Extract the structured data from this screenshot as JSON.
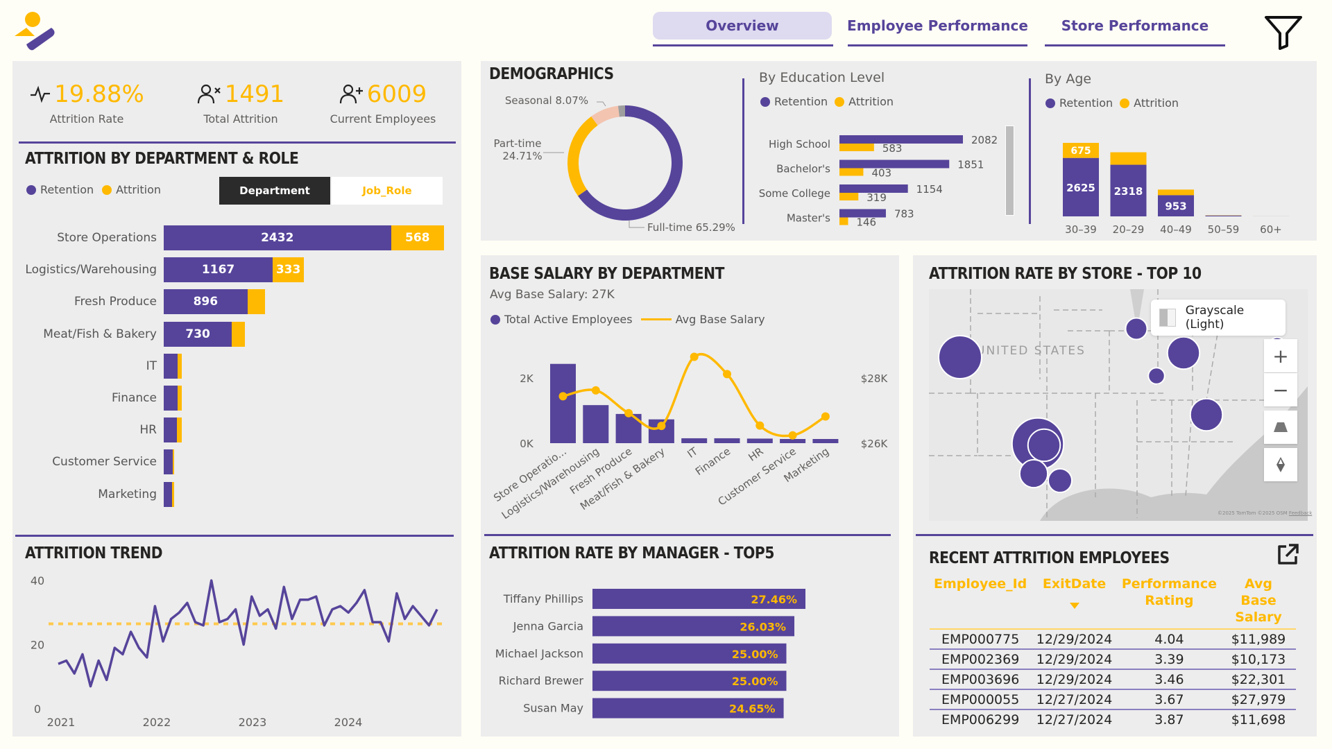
{
  "header": {
    "logo": "people-check-logo",
    "tabs": [
      {
        "label": "Overview",
        "active": true
      },
      {
        "label": "Employee Performance",
        "active": false
      },
      {
        "label": "Store Performance",
        "active": false
      }
    ],
    "filter_icon": "filter-icon"
  },
  "colors": {
    "purple": "#56449A",
    "gold": "#FFB900",
    "peach": "#F3C4B0",
    "grey": "#9E9E9E",
    "panel": "#EDEDED",
    "background": "#FFFEF6"
  },
  "kpis": [
    {
      "icon": "pulse-icon",
      "value": "19.88%",
      "label": "Attrition Rate"
    },
    {
      "icon": "user-x-icon",
      "value": "1491",
      "label": "Total Attrition"
    },
    {
      "icon": "user-plus-icon",
      "value": "6009",
      "label": "Current Employees"
    }
  ],
  "dept_chart": {
    "title": "ATTRITION BY DEPARTMENT & ROLE",
    "legend": [
      "Retention",
      "Attrition"
    ],
    "toggle": {
      "options": [
        "Department",
        "Job_Role"
      ],
      "selected": "Department"
    },
    "chart_data": {
      "type": "bar",
      "orientation": "horizontal-stacked",
      "categories": [
        "Store Operations",
        "Logistics/Warehousing",
        "Fresh Produce",
        "Meat/Fish & Bakery",
        "IT",
        "Finance",
        "HR",
        "Customer Service",
        "Marketing"
      ],
      "series": [
        {
          "name": "Retention",
          "values": [
            2432,
            1167,
            896,
            730,
            150,
            150,
            140,
            95,
            90
          ],
          "labels": [
            "2432",
            "1167",
            "896",
            "730",
            "",
            "",
            "",
            "",
            ""
          ]
        },
        {
          "name": "Attrition",
          "values": [
            568,
            333,
            190,
            140,
            40,
            40,
            50,
            20,
            22
          ],
          "labels": [
            "568",
            "333",
            "",
            "",
            "",
            "",
            "",
            "",
            ""
          ]
        }
      ],
      "xlim": [
        0,
        3000
      ]
    }
  },
  "trend": {
    "title": "ATTRITION TREND",
    "chart_data": {
      "type": "line",
      "title": "ATTRITION TREND",
      "x_ticks": [
        "2021",
        "2022",
        "2023",
        "2024"
      ],
      "y_ticks": [
        "0",
        "20",
        "40"
      ],
      "ylim": [
        0,
        40
      ],
      "average_line": 26.5,
      "series": [
        {
          "name": "Monthly Attrition",
          "values": [
            14,
            15,
            11,
            17,
            7,
            15,
            9,
            19,
            17,
            24,
            19,
            16,
            32,
            21,
            28,
            30,
            33,
            27,
            26,
            40,
            27,
            28,
            31,
            20,
            35,
            29,
            31,
            25,
            38,
            28,
            34,
            34,
            35,
            26,
            31,
            32,
            30,
            33,
            37,
            27,
            27,
            21,
            36,
            28,
            32,
            29,
            26,
            31
          ]
        }
      ]
    }
  },
  "demographics": {
    "title": "DEMOGRAPHICS",
    "chart_data": [
      {
        "type": "pie",
        "variant": "donut",
        "categories": [
          "Full-time",
          "Part-time",
          "Seasonal",
          "Other"
        ],
        "values": [
          65.29,
          24.71,
          8.07,
          1.93
        ],
        "labels": [
          "Full-time 65.29%",
          "Part-time 24.71%",
          "Seasonal 8.07%",
          ""
        ]
      },
      {
        "type": "bar",
        "orientation": "horizontal-grouped",
        "title": "By Education Level",
        "legend": [
          "Retention",
          "Attrition"
        ],
        "categories": [
          "High School",
          "Bachelor's",
          "Some College",
          "Master's"
        ],
        "series": [
          {
            "name": "Retention",
            "values": [
              2082,
              1851,
              1154,
              783
            ]
          },
          {
            "name": "Attrition",
            "values": [
              583,
              403,
              319,
              146
            ]
          }
        ]
      },
      {
        "type": "bar",
        "orientation": "vertical-stacked",
        "title": "By Age",
        "legend": [
          "Retention",
          "Attrition"
        ],
        "categories": [
          "30–39",
          "20–29",
          "40–49",
          "50–59",
          "60+"
        ],
        "series": [
          {
            "name": "Retention",
            "values": [
              2625,
              2318,
              953,
              40,
              2
            ],
            "labels": [
              "2625",
              "2318",
              "953",
              "",
              ""
            ]
          },
          {
            "name": "Attrition",
            "values": [
              675,
              560,
              250,
              10,
              1
            ],
            "labels": [
              "675",
              "",
              "",
              "",
              ""
            ]
          }
        ]
      }
    ]
  },
  "salary": {
    "title": "BASE SALARY BY DEPARTMENT",
    "subtitle": "Avg Base Salary: 27K",
    "legend": [
      "Total Active Employees",
      "Avg Base Salary"
    ],
    "chart_data": {
      "type": "bar",
      "combo": "bar+line",
      "categories": [
        "Store Operatio...",
        "Logistics/Warehousing",
        "Fresh Produce",
        "Meat/Fish & Bakery",
        "IT",
        "Finance",
        "HR",
        "Customer Service",
        "Marketing"
      ],
      "series": [
        {
          "name": "Total Active Employees",
          "axis": "left",
          "values": [
            2432,
            1167,
            896,
            730,
            150,
            150,
            140,
            95,
            90
          ]
        },
        {
          "name": "Avg Base Salary",
          "axis": "right",
          "type": "line",
          "values": [
            27440,
            27620,
            26920,
            26530,
            28650,
            28120,
            26540,
            26240,
            26820
          ]
        }
      ],
      "y_left_ticks": [
        "0K",
        "2K"
      ],
      "y_left_lim": [
        0,
        2000
      ],
      "y_right_ticks": [
        "$26K",
        "$28K"
      ],
      "y_right_lim": [
        26000,
        28000
      ]
    }
  },
  "manager": {
    "title": "ATTRITION RATE BY MANAGER - TOP5",
    "chart_data": {
      "type": "bar",
      "orientation": "horizontal",
      "categories": [
        "Tiffany Phillips",
        "Jenna Garcia",
        "Michael Jackson",
        "Richard Brewer",
        "Susan May"
      ],
      "values": [
        27.46,
        26.03,
        25.0,
        25.0,
        24.65
      ],
      "labels": [
        "27.46%",
        "26.03%",
        "25.00%",
        "25.00%",
        "24.65%"
      ],
      "xlim": [
        0,
        28
      ]
    }
  },
  "map": {
    "title": "ATTRITION RATE BY STORE - TOP 10",
    "country_label": "UNITED STATES",
    "style_label": "Grayscale (Light)",
    "controls": [
      "zoom-in",
      "zoom-out",
      "tilt",
      "compass"
    ],
    "attribution": "©2025 TomTom ©2025 OSM",
    "feedback": "Feedback",
    "stores": [
      {
        "name": "West store",
        "size": 1.0
      },
      {
        "name": "North-central store",
        "size": 0.5
      },
      {
        "name": "Great Lakes store",
        "size": 0.75
      },
      {
        "name": "Midwest store",
        "size": 0.38
      },
      {
        "name": "Northeast store",
        "size": 0.4
      },
      {
        "name": "Southeast store",
        "size": 0.75
      },
      {
        "name": "Texas store 1",
        "size": 1.2
      },
      {
        "name": "Texas store 2",
        "size": 0.75
      },
      {
        "name": "Texas store 3",
        "size": 0.65
      },
      {
        "name": "Texas store 4",
        "size": 0.55
      }
    ]
  },
  "recent": {
    "title": "RECENT ATTRITION EMPLOYEES",
    "columns": [
      "Employee_Id",
      "ExitDate",
      "Performance Rating",
      "Avg Base Salary"
    ],
    "sort_column": "ExitDate",
    "sort_dir": "desc",
    "rows": [
      [
        "EMP000775",
        "12/29/2024",
        "4.04",
        "$11,989"
      ],
      [
        "EMP002369",
        "12/29/2024",
        "3.39",
        "$10,173"
      ],
      [
        "EMP003696",
        "12/29/2024",
        "3.46",
        "$22,301"
      ],
      [
        "EMP000055",
        "12/27/2024",
        "3.67",
        "$27,979"
      ],
      [
        "EMP006299",
        "12/27/2024",
        "3.87",
        "$11,698"
      ]
    ]
  }
}
